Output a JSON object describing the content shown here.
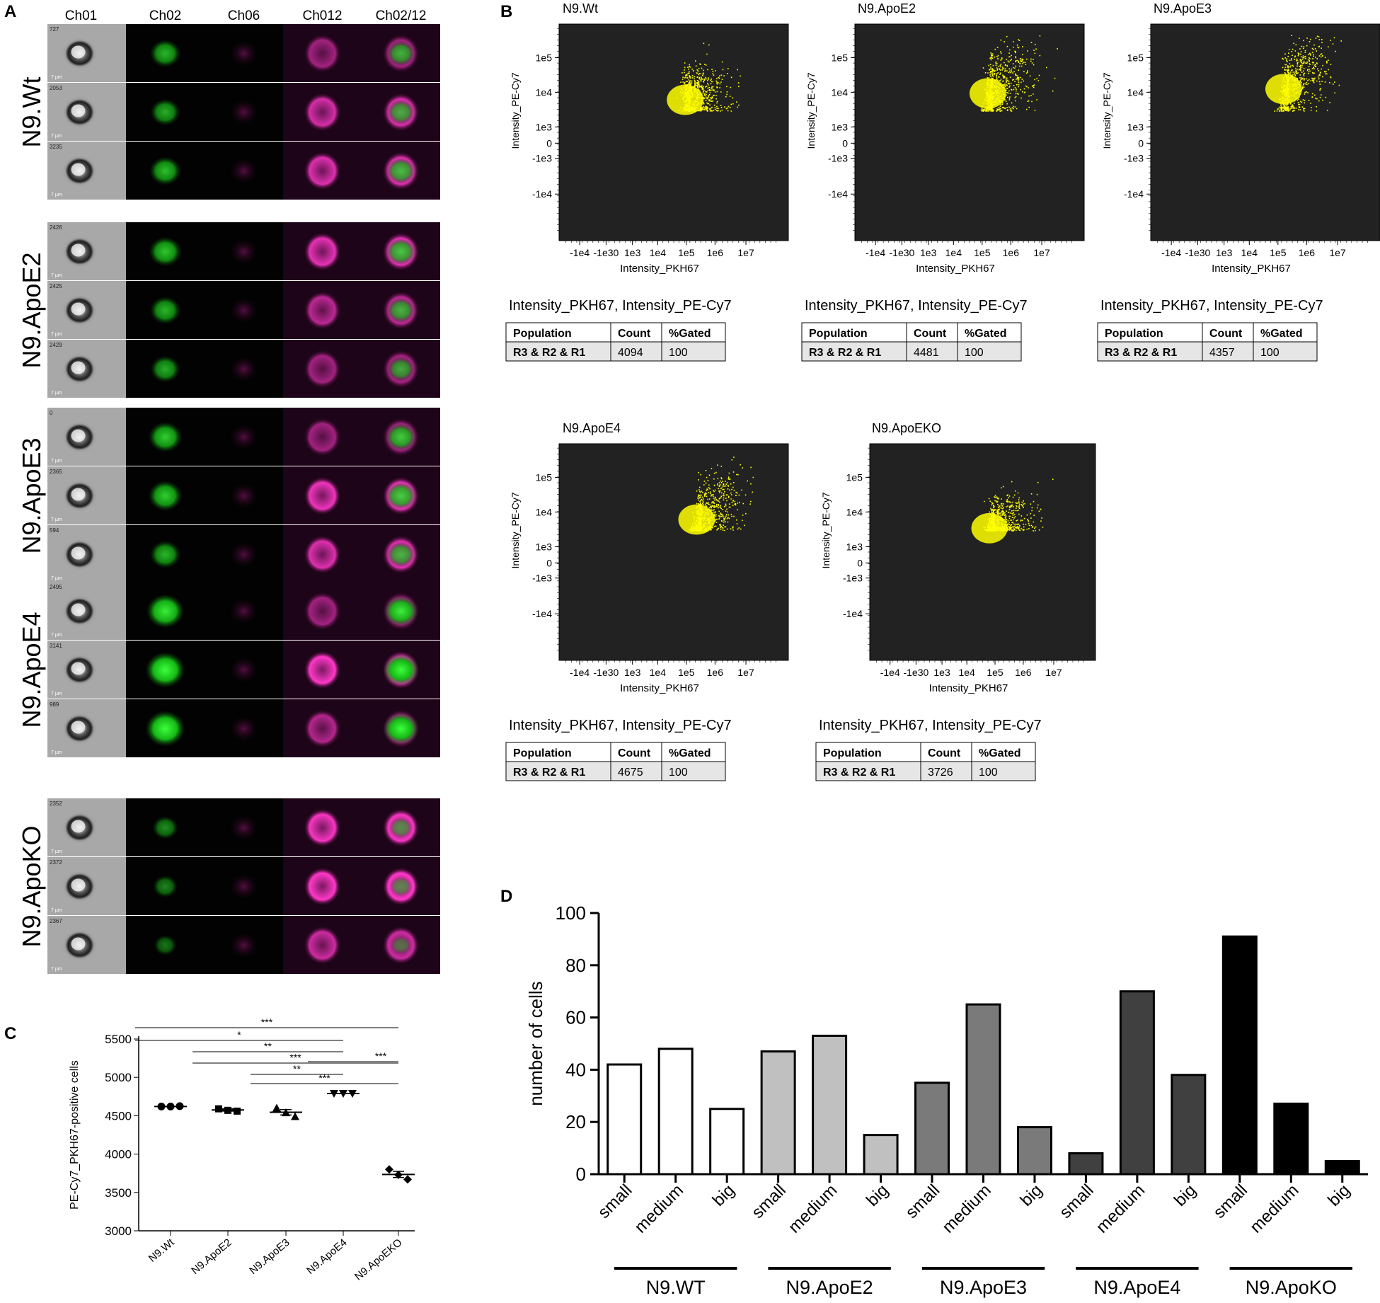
{
  "panel_letters": {
    "a": "A",
    "b": "B",
    "c": "C",
    "d": "D"
  },
  "panel_a": {
    "channels": [
      "Ch01",
      "Ch02",
      "Ch06",
      "Ch012",
      "Ch02/12"
    ],
    "groups": [
      {
        "label": "N9.Wt",
        "rows": [
          {
            "id": "727",
            "g": 0.55,
            "m": 0.45
          },
          {
            "id": "2053",
            "g": 0.5,
            "m": 0.75
          },
          {
            "id": "3235",
            "g": 0.6,
            "m": 0.8
          }
        ]
      },
      {
        "label": "N9.ApoE2",
        "rows": [
          {
            "id": "2426",
            "g": 0.65,
            "m": 0.85
          },
          {
            "id": "2425",
            "g": 0.55,
            "m": 0.6
          },
          {
            "id": "2429",
            "g": 0.5,
            "m": 0.45
          }
        ]
      },
      {
        "label": "N9.ApoE3",
        "rows": [
          {
            "id": "0",
            "g": 0.7,
            "m": 0.45
          },
          {
            "id": "2365",
            "g": 0.7,
            "m": 0.9
          },
          {
            "id": "594",
            "g": 0.55,
            "m": 0.8
          }
        ]
      },
      {
        "label": "N9.ApoE4",
        "rows": [
          {
            "id": "2495",
            "g": 0.9,
            "m": 0.45
          },
          {
            "id": "3141",
            "g": 1.0,
            "m": 1.0
          },
          {
            "id": "989",
            "g": 1.0,
            "m": 0.55
          }
        ]
      },
      {
        "label": "N9.ApoKO",
        "rows": [
          {
            "id": "2352",
            "g": 0.3,
            "m": 0.95
          },
          {
            "id": "2372",
            "g": 0.25,
            "m": 1.0
          },
          {
            "id": "2367",
            "g": 0.15,
            "m": 0.7
          }
        ]
      }
    ],
    "scale_label": "7 µm"
  },
  "panel_b": {
    "xlabel": "Intensity_PKH67",
    "ylabel": "Intensity_PE-Cy7",
    "x_ticks": [
      "-1e4",
      "-1e30",
      "1e3",
      "1e4",
      "1e5",
      "1e6",
      "1e7"
    ],
    "y_ticks": [
      "1e5",
      "1e4",
      "1e3",
      "0",
      "-1e3",
      "-1e4"
    ],
    "stats_title": "Intensity_PKH67, Intensity_PE-Cy7",
    "stats_headers": [
      "Population",
      "Count",
      "%Gated"
    ],
    "plots": [
      {
        "title": "N9.Wt",
        "population": "R3 & R2 & R1",
        "count": "4094",
        "gated": "100"
      },
      {
        "title": "N9.ApoE2",
        "population": "R3 & R2 & R1",
        "count": "4481",
        "gated": "100"
      },
      {
        "title": "N9.ApoE3",
        "population": "R3 & R2 & R1",
        "count": "4357",
        "gated": "100"
      },
      {
        "title": "N9.ApoE4",
        "population": "R3 & R2 & R1",
        "count": "4675",
        "gated": "100"
      },
      {
        "title": "N9.ApoEKO",
        "population": "R3 & R2 & R1",
        "count": "3726",
        "gated": "100"
      }
    ],
    "colors": {
      "plot_bg": "#222222",
      "dots": "#ffff00"
    }
  },
  "chart_data": [
    {
      "type": "scatter",
      "ylabel": "PE-Cy7_PKH67-positive cells",
      "ylim": [
        3000,
        5500
      ],
      "y_ticks": [
        3000,
        3500,
        4000,
        4500,
        5000,
        5500
      ],
      "categories": [
        "N9.Wt",
        "N9.ApoE2",
        "N9.ApoE3",
        "N9.ApoE4",
        "N9.ApoEKO"
      ],
      "points": [
        [
          4620,
          4620,
          4625
        ],
        [
          4590,
          4570,
          4560
        ],
        [
          4600,
          4540,
          4490
        ],
        [
          4790,
          4790,
          4790
        ],
        [
          3800,
          3730,
          3670
        ]
      ],
      "means": [
        4620,
        4575,
        4545,
        4790,
        3735
      ],
      "sem": [
        5,
        15,
        35,
        5,
        40
      ],
      "significance": [
        {
          "from": 0,
          "to": 4,
          "label": "***"
        },
        {
          "from": 0,
          "to": 3,
          "label": "*"
        },
        {
          "from": 1,
          "to": 3,
          "label": "**"
        },
        {
          "from": 1,
          "to": 4,
          "label": "***"
        },
        {
          "from": 2,
          "to": 3,
          "label": "**"
        },
        {
          "from": 3,
          "to": 4,
          "label": "***"
        },
        {
          "from": 2,
          "to": 4,
          "label": "***"
        }
      ]
    },
    {
      "type": "bar",
      "ylabel": "number of cells",
      "ylim": [
        0,
        100
      ],
      "y_ticks": [
        0,
        20,
        40,
        60,
        80,
        100
      ],
      "groups": [
        {
          "name": "N9.WT",
          "color": "#ffffff",
          "bars": [
            {
              "label": "small",
              "value": 42
            },
            {
              "label": "medium",
              "value": 48
            },
            {
              "label": "big",
              "value": 25
            }
          ]
        },
        {
          "name": "N9.ApoE2",
          "color": "#c0c0c0",
          "bars": [
            {
              "label": "small",
              "value": 47
            },
            {
              "label": "medium",
              "value": 53
            },
            {
              "label": "big",
              "value": 15
            }
          ]
        },
        {
          "name": "N9.ApoE3",
          "color": "#7a7a7a",
          "bars": [
            {
              "label": "small",
              "value": 35
            },
            {
              "label": "medium",
              "value": 65
            },
            {
              "label": "big",
              "value": 18
            }
          ]
        },
        {
          "name": "N9.ApoE4",
          "color": "#404040",
          "bars": [
            {
              "label": "small",
              "value": 8
            },
            {
              "label": "medium",
              "value": 70
            },
            {
              "label": "big",
              "value": 38
            }
          ]
        },
        {
          "name": "N9.ApoKO",
          "color": "#000000",
          "bars": [
            {
              "label": "small",
              "value": 91
            },
            {
              "label": "medium",
              "value": 27
            },
            {
              "label": "big",
              "value": 5
            }
          ]
        }
      ]
    }
  ]
}
